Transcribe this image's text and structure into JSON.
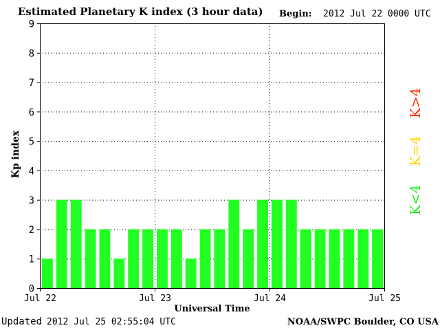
{
  "header": {
    "title": "Estimated Planetary K index (3 hour data)",
    "begin_label": "Begin:",
    "begin_value": "2012 Jul 22 0000 UTC"
  },
  "footer": {
    "updated_label": "Updated",
    "updated_value": "2012 Jul 25 02:55:04 UTC",
    "credit": "NOAA/SWPC Boulder, CO USA"
  },
  "legend": [
    {
      "label": "K>4",
      "color": "#ff2a00"
    },
    {
      "label": "K=4",
      "color": "#ffd700"
    },
    {
      "label": "K<4",
      "color": "#22ee22"
    }
  ],
  "chart_data": {
    "type": "bar",
    "title": "Estimated Planetary K index (3 hour data)",
    "xlabel": "Universal Time",
    "ylabel": "Kp index",
    "ylim": [
      0,
      9
    ],
    "yticks": [
      0,
      1,
      2,
      3,
      4,
      5,
      6,
      7,
      8,
      9
    ],
    "xticks": [
      "Jul 22",
      "Jul 23",
      "Jul 24",
      "Jul 25"
    ],
    "grid": true,
    "bar_color": "#22ff22",
    "values": [
      1,
      3,
      3,
      2,
      2,
      1,
      2,
      2,
      2,
      2,
      1,
      2,
      2,
      3,
      2,
      3,
      3,
      3,
      2,
      2,
      2,
      2,
      2,
      2
    ]
  }
}
